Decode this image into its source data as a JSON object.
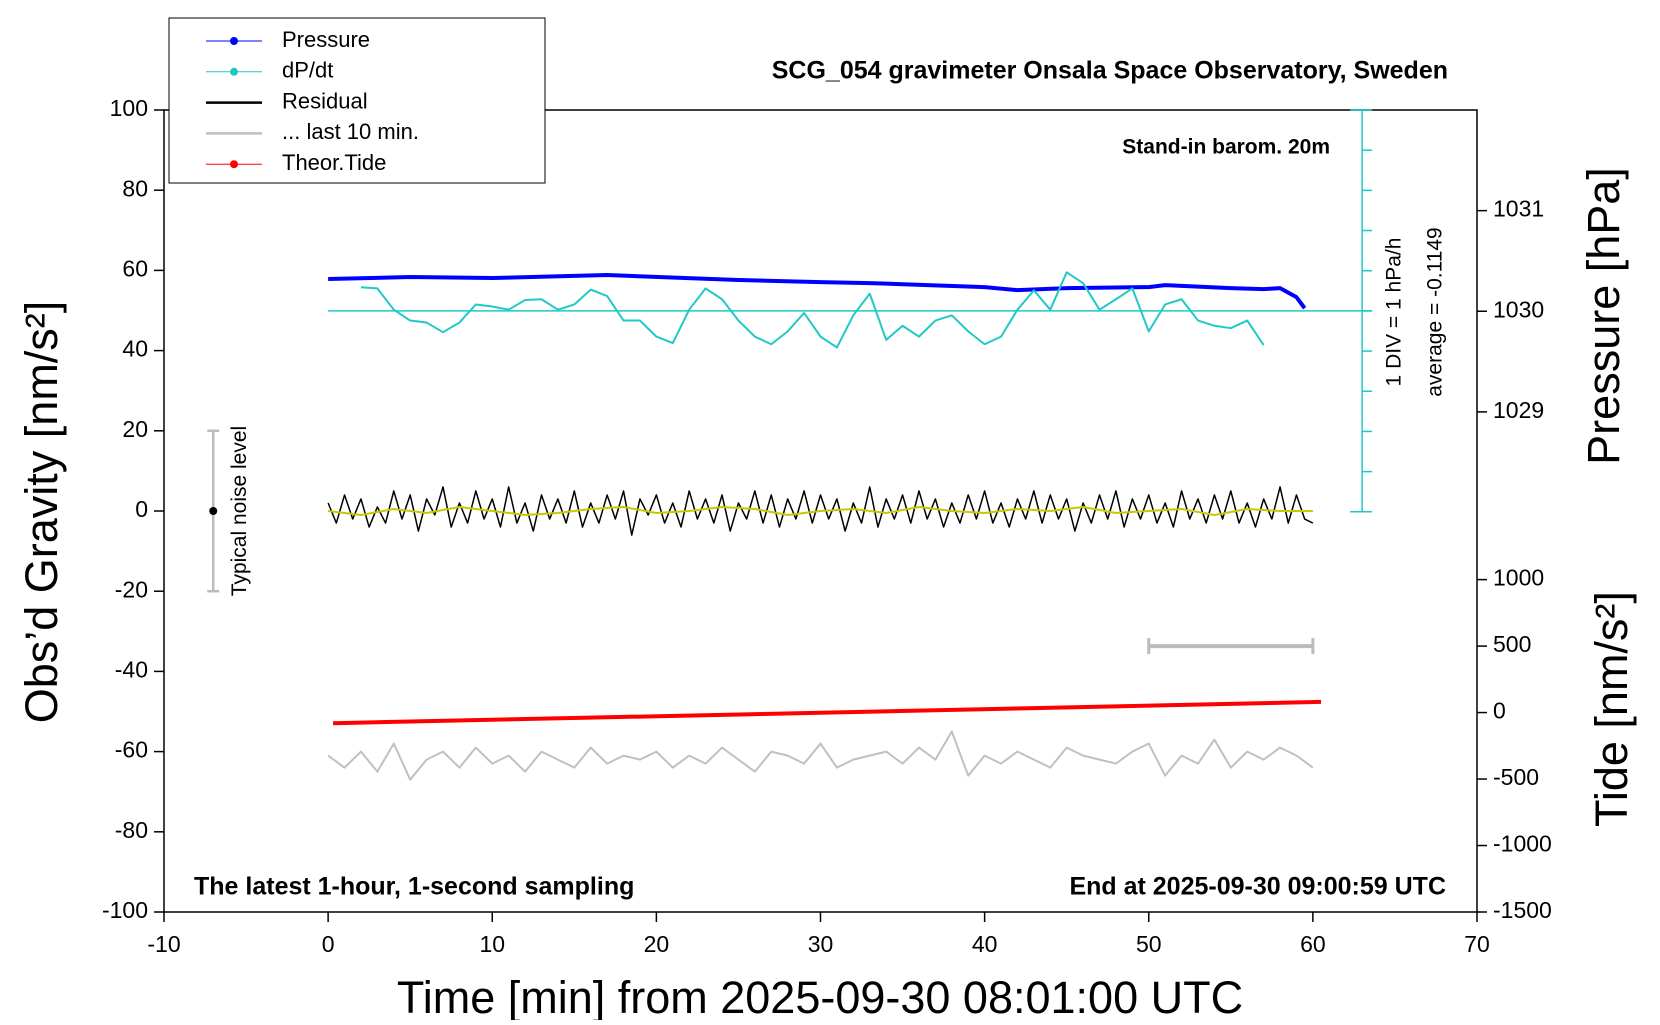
{
  "chart_data": {
    "type": "line",
    "title": "SCG_054 gravimeter Onsala Space Observatory, Sweden",
    "subtitle": "Stand-in barom. 20m",
    "x_label": "Time [min] from 2025-09-30 08:01:00 UTC",
    "y_label": "Obs’d Gravity [nm/s²]",
    "y2_label": "Pressure [hPa]",
    "y3_label": "Tide [nm/s²]",
    "y4_label": "1 DIV = 1 hPa/h",
    "annotation_average": "average = -0.1149",
    "annotation_left": "The latest 1-hour, 1-second sampling",
    "annotation_right": "End at 2025-09-30 09:00:59 UTC",
    "xlim": [
      -10,
      70
    ],
    "xticks": [
      -10,
      0,
      10,
      20,
      30,
      40,
      50,
      60,
      70
    ],
    "ylim": [
      -100,
      100
    ],
    "yticks": [
      -100,
      -80,
      -60,
      -40,
      -20,
      0,
      20,
      40,
      60,
      80,
      100
    ],
    "y2lim": [
      1024.03,
      1032
    ],
    "y2ticks": [
      1029,
      1030,
      1031
    ],
    "y3lim": [
      -1500,
      4532
    ],
    "y3ticks": [
      -1500,
      -1000,
      -500,
      0,
      500,
      1000
    ],
    "y4lim": [
      -14.96,
      5
    ],
    "y4ticks": [
      -5,
      -4,
      -3,
      -2,
      -1,
      0,
      1,
      2,
      3,
      4,
      5
    ],
    "noise_bar": {
      "x": -7,
      "range": [
        -20,
        20
      ],
      "center": 0,
      "label": "Typical noise level"
    },
    "window": {
      "x": [
        50,
        60
      ],
      "tide": 500
    },
    "series": [
      {
        "name": "Pressure",
        "color": "#0000ff",
        "axis": "y2",
        "marker": true,
        "width": 4,
        "x": [
          0,
          5,
          10,
          17,
          25,
          30,
          33,
          40,
          42,
          45,
          50,
          51,
          55,
          57,
          58,
          59,
          59.5
        ],
        "values": [
          1030.32,
          1030.34,
          1030.33,
          1030.36,
          1030.31,
          1030.29,
          1030.28,
          1030.24,
          1030.21,
          1030.23,
          1030.24,
          1030.26,
          1030.23,
          1030.22,
          1030.23,
          1030.14,
          1030.03
        ]
      },
      {
        "name": "dP/dt",
        "color": "#20c8c8",
        "axis": "y4",
        "marker": true,
        "width": 2,
        "x": [
          2,
          3,
          4,
          5,
          6,
          7,
          8,
          9,
          10,
          11,
          12,
          13,
          14,
          15,
          16,
          17,
          18,
          19,
          20,
          21,
          22,
          23,
          24,
          25,
          26,
          27,
          28,
          29,
          30,
          31,
          32,
          33,
          34,
          35,
          36,
          37,
          38,
          39,
          40,
          41,
          42,
          43,
          44,
          45,
          46,
          47,
          48,
          49,
          50,
          51,
          52,
          53,
          54,
          55,
          56,
          57
        ],
        "values": [
          0.59,
          0.56,
          0.03,
          -0.24,
          -0.29,
          -0.53,
          -0.29,
          0.16,
          0.11,
          0.03,
          0.27,
          0.29,
          0.03,
          0.16,
          0.53,
          0.37,
          -0.24,
          -0.24,
          -0.64,
          -0.8,
          0.03,
          0.56,
          0.29,
          -0.24,
          -0.64,
          -0.83,
          -0.51,
          -0.05,
          -0.64,
          -0.91,
          -0.11,
          0.43,
          -0.72,
          -0.37,
          -0.64,
          -0.24,
          -0.11,
          -0.51,
          -0.83,
          -0.64,
          0.03,
          0.51,
          0.03,
          0.96,
          0.69,
          0.03,
          0.29,
          0.56,
          -0.51,
          0.16,
          0.29,
          -0.24,
          -0.37,
          -0.43,
          -0.24,
          -0.85
        ]
      },
      {
        "name": "Residual",
        "color": "#000000",
        "axis": "y",
        "marker": false,
        "width": 1.5,
        "x": [
          0,
          0.5,
          1,
          1.5,
          2,
          2.5,
          3,
          3.5,
          4,
          4.5,
          5,
          5.5,
          6,
          6.5,
          7,
          7.5,
          8,
          8.5,
          9,
          9.5,
          10,
          10.5,
          11,
          11.5,
          12,
          12.5,
          13,
          13.5,
          14,
          14.5,
          15,
          15.5,
          16,
          16.5,
          17,
          17.5,
          18,
          18.5,
          19,
          19.5,
          20,
          20.5,
          21,
          21.5,
          22,
          22.5,
          23,
          23.5,
          24,
          24.5,
          25,
          25.5,
          26,
          26.5,
          27,
          27.5,
          28,
          28.5,
          29,
          29.5,
          30,
          30.5,
          31,
          31.5,
          32,
          32.5,
          33,
          33.5,
          34,
          34.5,
          35,
          35.5,
          36,
          36.5,
          37,
          37.5,
          38,
          38.5,
          39,
          39.5,
          40,
          40.5,
          41,
          41.5,
          42,
          42.5,
          43,
          43.5,
          44,
          44.5,
          45,
          45.5,
          46,
          46.5,
          47,
          47.5,
          48,
          48.5,
          49,
          49.5,
          50,
          50.5,
          51,
          51.5,
          52,
          52.5,
          53,
          53.5,
          54,
          54.5,
          55,
          55.5,
          56,
          56.5,
          57,
          57.5,
          58,
          58.5,
          59,
          59.5,
          60
        ],
        "values": [
          2,
          -3,
          4,
          -2,
          3,
          -4,
          1,
          -3,
          5,
          -2,
          4,
          -5,
          3,
          -1,
          6,
          -4,
          2,
          -3,
          5,
          -2,
          3,
          -4,
          6,
          -3,
          2,
          -5,
          4,
          -2,
          3,
          -3,
          5,
          -4,
          2,
          -3,
          4,
          -2,
          5,
          -6,
          3,
          -1,
          4,
          -3,
          2,
          -4,
          5,
          -2,
          3,
          -3,
          4,
          -5,
          2,
          -2,
          5,
          -3,
          4,
          -4,
          3,
          -2,
          5,
          -3,
          4,
          -2,
          3,
          -5,
          2,
          -3,
          6,
          -4,
          3,
          -2,
          4,
          -3,
          5,
          -2,
          3,
          -4,
          2,
          -3,
          4,
          -2,
          5,
          -3,
          2,
          -4,
          3,
          -2,
          5,
          -3,
          4,
          -2,
          3,
          -5,
          2,
          -3,
          4,
          -2,
          5,
          -4,
          3,
          -2,
          4,
          -3,
          2,
          -4,
          5,
          -2,
          3,
          -3,
          4,
          -2,
          5,
          -3,
          2,
          -4,
          3,
          -2,
          6,
          -3,
          4,
          -2,
          -3
        ]
      },
      {
        "color": "#c8c800",
        "axis": "y",
        "marker": false,
        "width": 2,
        "x": [
          0,
          2,
          4,
          6,
          8,
          10,
          12,
          14,
          16,
          18,
          20,
          22,
          24,
          26,
          28,
          30,
          32,
          34,
          36,
          38,
          40,
          42,
          44,
          46,
          48,
          50,
          52,
          54,
          56,
          58,
          60
        ],
        "values": [
          0,
          -1,
          0.5,
          -0.5,
          1,
          0,
          -1,
          -0.5,
          0.5,
          1,
          -0.5,
          0,
          1,
          0.5,
          -1,
          0,
          0.5,
          -0.5,
          1,
          0,
          -0.5,
          0.5,
          0,
          1,
          -0.5,
          0,
          0.5,
          -1,
          0.5,
          0,
          0
        ]
      },
      {
        "name": "... last 10 min.",
        "color": "#c0c0c0",
        "axis": "y",
        "marker": false,
        "width": 2,
        "x": [
          0,
          1,
          2,
          3,
          4,
          5,
          6,
          7,
          8,
          9,
          10,
          11,
          12,
          13,
          14,
          15,
          16,
          17,
          18,
          19,
          20,
          21,
          22,
          23,
          24,
          25,
          26,
          27,
          28,
          29,
          30,
          31,
          32,
          33,
          34,
          35,
          36,
          37,
          38,
          39,
          40,
          41,
          42,
          43,
          44,
          45,
          46,
          47,
          48,
          49,
          50,
          51,
          52,
          53,
          54,
          55,
          56,
          57,
          58,
          59,
          60
        ],
        "values": [
          -61,
          -64,
          -60,
          -65,
          -58,
          -67,
          -62,
          -60,
          -64,
          -59,
          -63,
          -61,
          -65,
          -60,
          -62,
          -64,
          -59,
          -63,
          -61,
          -62,
          -60,
          -64,
          -61,
          -63,
          -59,
          -62,
          -65,
          -60,
          -61,
          -63,
          -58,
          -64,
          -62,
          -61,
          -60,
          -63,
          -59,
          -62,
          -55,
          -66,
          -61,
          -63,
          -60,
          -62,
          -64,
          -59,
          -61,
          -62,
          -63,
          -60,
          -58,
          -66,
          -61,
          -63,
          -57,
          -64,
          -60,
          -62,
          -59,
          -61,
          -64
        ]
      },
      {
        "name": "Theor.Tide",
        "color": "#ff0000",
        "axis": "y3",
        "marker": true,
        "width": 4,
        "x": [
          0.3,
          60.5
        ],
        "values": [
          -80,
          80
        ]
      }
    ]
  }
}
